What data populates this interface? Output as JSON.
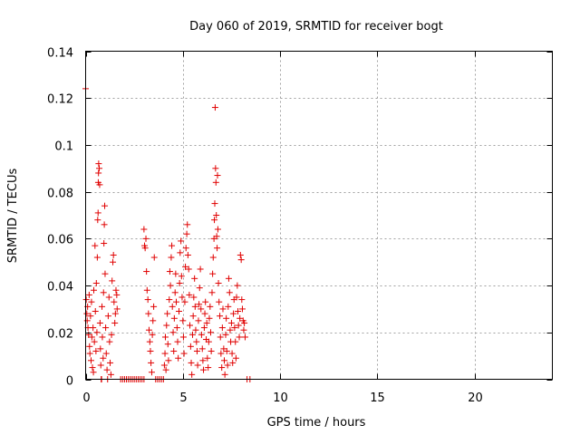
{
  "chart_data": {
    "type": "scatter",
    "title": "Day 060 of 2019, SRMTID for receiver bogt",
    "xlabel": "GPS time / hours",
    "ylabel": "SRMTID / TECUs",
    "xlim": [
      0,
      24
    ],
    "ylim": [
      0,
      0.14
    ],
    "xticks": [
      0,
      5,
      10,
      15,
      20
    ],
    "xtick_labels": [
      "0",
      "5",
      "10",
      "15",
      "20"
    ],
    "yticks": [
      0,
      0.02,
      0.04,
      0.06,
      0.08,
      0.1,
      0.12,
      0.14
    ],
    "ytick_labels": [
      "0",
      "0.02",
      "0.04",
      "0.06",
      "0.08",
      "0.1",
      "0.12",
      "0.14"
    ],
    "grid": true,
    "marker": "+",
    "marker_color": "#e00000",
    "series": [
      {
        "name": "SRMTID",
        "points": [
          [
            0.0,
            0.124
          ],
          [
            0.03,
            0.034
          ],
          [
            0.06,
            0.028
          ],
          [
            0.08,
            0.025
          ],
          [
            0.1,
            0.031
          ],
          [
            0.12,
            0.022
          ],
          [
            0.15,
            0.019
          ],
          [
            0.18,
            0.036
          ],
          [
            0.2,
            0.014
          ],
          [
            0.22,
            0.011
          ],
          [
            0.25,
            0.027
          ],
          [
            0.28,
            0.008
          ],
          [
            0.3,
            0.033
          ],
          [
            0.32,
            0.018
          ],
          [
            0.35,
            0.005
          ],
          [
            0.38,
            0.022
          ],
          [
            0.4,
            0.003
          ],
          [
            0.42,
            0.038
          ],
          [
            0.45,
            0.016
          ],
          [
            0.48,
            0.057
          ],
          [
            0.5,
            0.029
          ],
          [
            0.53,
            0.012
          ],
          [
            0.55,
            0.041
          ],
          [
            0.58,
            0.02
          ],
          [
            0.6,
            0.052
          ],
          [
            0.62,
            0.068
          ],
          [
            0.64,
            0.071
          ],
          [
            0.65,
            0.084
          ],
          [
            0.66,
            0.088
          ],
          [
            0.67,
            0.092
          ],
          [
            0.7,
            0.09
          ],
          [
            0.72,
            0.083
          ],
          [
            0.74,
            0.024
          ],
          [
            0.76,
            0.013
          ],
          [
            0.78,
            0.006
          ],
          [
            0.8,
            0.0
          ],
          [
            0.82,
            0.0
          ],
          [
            0.84,
            0.031
          ],
          [
            0.86,
            0.018
          ],
          [
            0.9,
            0.009
          ],
          [
            0.92,
            0.037
          ],
          [
            0.94,
            0.058
          ],
          [
            0.96,
            0.066
          ],
          [
            0.98,
            0.074
          ],
          [
            1.0,
            0.045
          ],
          [
            1.03,
            0.022
          ],
          [
            1.06,
            0.011
          ],
          [
            1.1,
            0.004
          ],
          [
            1.13,
            0.0
          ],
          [
            1.16,
            0.027
          ],
          [
            1.2,
            0.035
          ],
          [
            1.23,
            0.016
          ],
          [
            1.26,
            0.007
          ],
          [
            1.3,
            0.002
          ],
          [
            1.33,
            0.019
          ],
          [
            1.36,
            0.042
          ],
          [
            1.4,
            0.05
          ],
          [
            1.43,
            0.053
          ],
          [
            1.46,
            0.033
          ],
          [
            1.5,
            0.024
          ],
          [
            1.53,
            0.028
          ],
          [
            1.56,
            0.038
          ],
          [
            1.6,
            0.036
          ],
          [
            1.62,
            0.03
          ],
          [
            1.8,
            0.0
          ],
          [
            1.9,
            0.0
          ],
          [
            2.0,
            0.0
          ],
          [
            2.1,
            0.0
          ],
          [
            2.2,
            0.0
          ],
          [
            2.3,
            0.0
          ],
          [
            2.4,
            0.0
          ],
          [
            2.5,
            0.0
          ],
          [
            2.6,
            0.0
          ],
          [
            2.7,
            0.0
          ],
          [
            2.8,
            0.0
          ],
          [
            2.9,
            0.0
          ],
          [
            3.0,
            0.0
          ],
          [
            3.0,
            0.064
          ],
          [
            3.03,
            0.057
          ],
          [
            3.06,
            0.056
          ],
          [
            3.1,
            0.06
          ],
          [
            3.13,
            0.046
          ],
          [
            3.16,
            0.038
          ],
          [
            3.2,
            0.034
          ],
          [
            3.23,
            0.028
          ],
          [
            3.26,
            0.021
          ],
          [
            3.3,
            0.016
          ],
          [
            3.33,
            0.012
          ],
          [
            3.36,
            0.007
          ],
          [
            3.4,
            0.003
          ],
          [
            3.43,
            0.019
          ],
          [
            3.46,
            0.025
          ],
          [
            3.5,
            0.031
          ],
          [
            3.53,
            0.052
          ],
          [
            3.6,
            0.0
          ],
          [
            3.7,
            0.0
          ],
          [
            3.8,
            0.0
          ],
          [
            3.9,
            0.0
          ],
          [
            4.0,
            0.0
          ],
          [
            4.05,
            0.006
          ],
          [
            4.08,
            0.011
          ],
          [
            4.1,
            0.018
          ],
          [
            4.13,
            0.004
          ],
          [
            4.16,
            0.023
          ],
          [
            4.2,
            0.028
          ],
          [
            4.23,
            0.015
          ],
          [
            4.26,
            0.008
          ],
          [
            4.3,
            0.034
          ],
          [
            4.33,
            0.046
          ],
          [
            4.36,
            0.04
          ],
          [
            4.4,
            0.052
          ],
          [
            4.43,
            0.057
          ],
          [
            4.46,
            0.031
          ],
          [
            4.5,
            0.02
          ],
          [
            4.53,
            0.012
          ],
          [
            4.56,
            0.026
          ],
          [
            4.6,
            0.037
          ],
          [
            4.63,
            0.045
          ],
          [
            4.66,
            0.033
          ],
          [
            4.7,
            0.022
          ],
          [
            4.73,
            0.016
          ],
          [
            4.76,
            0.009
          ],
          [
            4.8,
            0.029
          ],
          [
            4.83,
            0.041
          ],
          [
            4.86,
            0.054
          ],
          [
            4.9,
            0.059
          ],
          [
            4.93,
            0.044
          ],
          [
            4.96,
            0.035
          ],
          [
            5.0,
            0.025
          ],
          [
            5.03,
            0.018
          ],
          [
            5.06,
            0.011
          ],
          [
            5.1,
            0.033
          ],
          [
            5.13,
            0.048
          ],
          [
            5.16,
            0.056
          ],
          [
            5.2,
            0.062
          ],
          [
            5.23,
            0.066
          ],
          [
            5.26,
            0.053
          ],
          [
            5.3,
            0.047
          ],
          [
            5.33,
            0.036
          ],
          [
            5.36,
            0.023
          ],
          [
            5.4,
            0.014
          ],
          [
            5.43,
            0.007
          ],
          [
            5.46,
            0.002
          ],
          [
            5.5,
            0.019
          ],
          [
            5.53,
            0.027
          ],
          [
            5.56,
            0.035
          ],
          [
            5.6,
            0.043
          ],
          [
            5.63,
            0.031
          ],
          [
            5.66,
            0.021
          ],
          [
            5.7,
            0.016
          ],
          [
            5.73,
            0.012
          ],
          [
            5.76,
            0.006
          ],
          [
            5.8,
            0.025
          ],
          [
            5.83,
            0.032
          ],
          [
            5.86,
            0.039
          ],
          [
            5.9,
            0.047
          ],
          [
            5.93,
            0.03
          ],
          [
            5.96,
            0.019
          ],
          [
            6.0,
            0.013
          ],
          [
            6.03,
            0.008
          ],
          [
            6.06,
            0.004
          ],
          [
            6.1,
            0.022
          ],
          [
            6.13,
            0.028
          ],
          [
            6.16,
            0.033
          ],
          [
            6.2,
            0.017
          ],
          [
            6.23,
            0.024
          ],
          [
            6.26,
            0.009
          ],
          [
            6.3,
            0.005
          ],
          [
            6.33,
            0.016
          ],
          [
            6.36,
            0.026
          ],
          [
            6.4,
            0.031
          ],
          [
            6.43,
            0.02
          ],
          [
            6.46,
            0.012
          ],
          [
            6.5,
            0.037
          ],
          [
            6.53,
            0.045
          ],
          [
            6.56,
            0.052
          ],
          [
            6.6,
            0.06
          ],
          [
            6.62,
            0.068
          ],
          [
            6.64,
            0.075
          ],
          [
            6.66,
            0.116
          ],
          [
            6.68,
            0.09
          ],
          [
            6.7,
            0.084
          ],
          [
            6.72,
            0.07
          ],
          [
            6.74,
            0.061
          ],
          [
            6.76,
            0.056
          ],
          [
            6.78,
            0.087
          ],
          [
            6.8,
            0.064
          ],
          [
            6.83,
            0.041
          ],
          [
            6.86,
            0.033
          ],
          [
            6.9,
            0.027
          ],
          [
            6.93,
            0.018
          ],
          [
            6.96,
            0.011
          ],
          [
            7.0,
            0.005
          ],
          [
            7.03,
            0.022
          ],
          [
            7.06,
            0.03
          ],
          [
            7.1,
            0.013
          ],
          [
            7.13,
            0.008
          ],
          [
            7.16,
            0.002
          ],
          [
            7.2,
            0.019
          ],
          [
            7.23,
            0.026
          ],
          [
            7.26,
            0.012
          ],
          [
            7.3,
            0.006
          ],
          [
            7.33,
            0.031
          ],
          [
            7.36,
            0.043
          ],
          [
            7.4,
            0.037
          ],
          [
            7.43,
            0.021
          ],
          [
            7.46,
            0.016
          ],
          [
            7.5,
            0.024
          ],
          [
            7.53,
            0.011
          ],
          [
            7.56,
            0.007
          ],
          [
            7.6,
            0.028
          ],
          [
            7.63,
            0.034
          ],
          [
            7.66,
            0.022
          ],
          [
            7.7,
            0.016
          ],
          [
            7.73,
            0.009
          ],
          [
            7.76,
            0.035
          ],
          [
            7.8,
            0.04
          ],
          [
            7.83,
            0.029
          ],
          [
            7.86,
            0.023
          ],
          [
            7.9,
            0.018
          ],
          [
            7.93,
            0.026
          ],
          [
            7.96,
            0.053
          ],
          [
            8.0,
            0.051
          ],
          [
            8.03,
            0.034
          ],
          [
            8.06,
            0.03
          ],
          [
            8.1,
            0.025
          ],
          [
            8.13,
            0.021
          ],
          [
            8.16,
            0.024
          ],
          [
            8.2,
            0.018
          ],
          [
            8.3,
            0.0
          ],
          [
            8.45,
            0.0
          ]
        ]
      }
    ]
  }
}
